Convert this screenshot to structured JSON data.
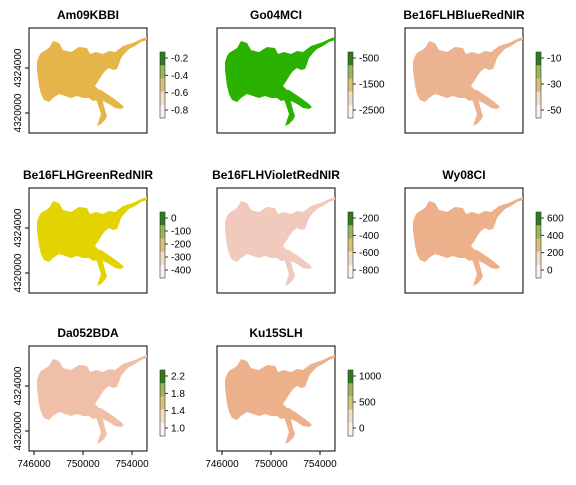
{
  "colors": {
    "frame": "#000000",
    "background": "#ffffff"
  },
  "chart_data": [
    {
      "type": "heatmap",
      "title": "Am09KBBI",
      "fill": "#e5b54a",
      "x_ticks": [],
      "y_ticks": [
        "4320000",
        "4324000"
      ],
      "legend": {
        "labels": [
          "-0.2",
          "-0.4",
          "-0.6",
          "-0.8"
        ],
        "colors": [
          "#2f7d1a",
          "#9bb35a",
          "#d6c27a",
          "#f0dfc7",
          "#fbf3ee"
        ]
      }
    },
    {
      "type": "heatmap",
      "title": "Go04MCI",
      "fill": "#2bb100",
      "x_ticks": [],
      "y_ticks": [],
      "legend": {
        "labels": [
          "-500",
          "-1500",
          "-2500"
        ],
        "colors": [
          "#2f7d1a",
          "#9bb35a",
          "#d6c27a",
          "#f0dfc7",
          "#fbf3ee"
        ]
      }
    },
    {
      "type": "heatmap",
      "title": "Be16FLHBlueRedNIR",
      "fill": "#ecb390",
      "x_ticks": [],
      "y_ticks": [],
      "legend": {
        "labels": [
          "-10",
          "-30",
          "-50"
        ],
        "colors": [
          "#2f7d1a",
          "#9bb35a",
          "#d6c27a",
          "#f0dfc7",
          "#fbf3ee"
        ]
      }
    },
    {
      "type": "heatmap",
      "title": "Be16FLHGreenRedNIR",
      "fill": "#e3d300",
      "x_ticks": [],
      "y_ticks": [
        "4320000",
        "4324000"
      ],
      "legend": {
        "labels": [
          "0",
          "-100",
          "-200",
          "-300",
          "-400"
        ],
        "colors": [
          "#2f7d1a",
          "#9bb35a",
          "#d6c27a",
          "#f0dfc7",
          "#fbf3ee"
        ]
      }
    },
    {
      "type": "heatmap",
      "title": "Be16FLHVioletRedNIR",
      "fill": "#f2c9bd",
      "x_ticks": [],
      "y_ticks": [],
      "legend": {
        "labels": [
          "-200",
          "-400",
          "-600",
          "-800"
        ],
        "colors": [
          "#2f7d1a",
          "#9bb35a",
          "#d6c27a",
          "#f0dfc7",
          "#fbf3ee"
        ]
      }
    },
    {
      "type": "heatmap",
      "title": "Wy08CI",
      "fill": "#ecb08a",
      "x_ticks": [],
      "y_ticks": [],
      "legend": {
        "labels": [
          "600",
          "400",
          "200",
          "0"
        ],
        "colors": [
          "#2f7d1a",
          "#9bb35a",
          "#d6c27a",
          "#f0dfc7",
          "#fbf3ee"
        ]
      }
    },
    {
      "type": "heatmap",
      "title": "Da052BDA",
      "fill": "#f0bfa8",
      "x_ticks": [
        "746000",
        "750000",
        "754000"
      ],
      "y_ticks": [
        "4320000",
        "4324000"
      ],
      "legend": {
        "labels": [
          "2.2",
          "1.8",
          "1.4",
          "1.0"
        ],
        "colors": [
          "#2f7d1a",
          "#9bb35a",
          "#d6c27a",
          "#f0dfc7",
          "#fbf3ee"
        ]
      }
    },
    {
      "type": "heatmap",
      "title": "Ku15SLH",
      "fill": "#ecb08a",
      "x_ticks": [
        "746000",
        "750000",
        "754000"
      ],
      "y_ticks": [],
      "legend": {
        "labels": [
          "1000",
          "500",
          "0"
        ],
        "colors": [
          "#2f7d1a",
          "#9bb35a",
          "#d6c27a",
          "#f0dfc7",
          "#fbf3ee"
        ]
      }
    }
  ]
}
